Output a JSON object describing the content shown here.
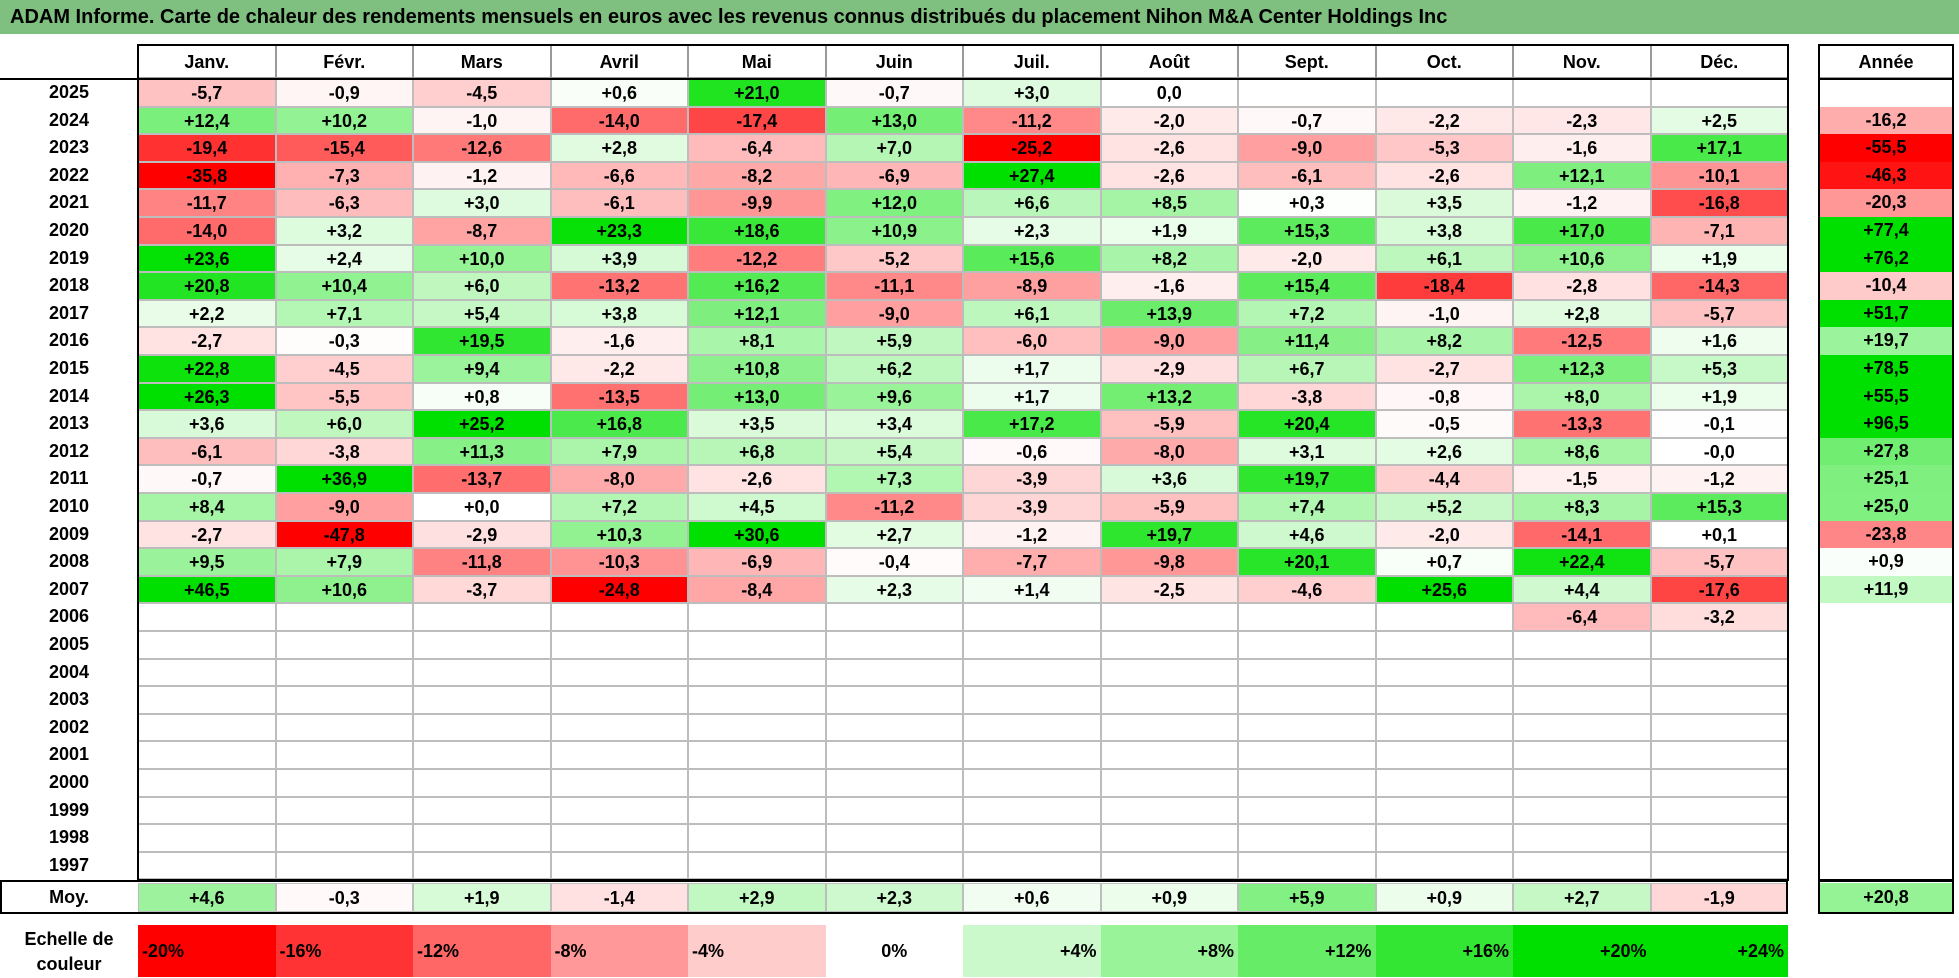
{
  "title": "ADAM Informe. Carte de chaleur des rendements mensuels en euros avec les revenus connus distribués du placement Nihon M&A Center Holdings Inc",
  "chart_data": {
    "type": "heatmap",
    "months": [
      "Janv.",
      "Févr.",
      "Mars",
      "Avril",
      "Mai",
      "Juin",
      "Juil.",
      "Août",
      "Sept.",
      "Oct.",
      "Nov.",
      "Déc."
    ],
    "year_header": "Année",
    "rows": [
      {
        "year": "2025",
        "values": [
          "-5,7",
          "-0,9",
          "-4,5",
          "+0,6",
          "+21,0",
          "-0,7",
          "+3,0",
          "0,0",
          "",
          "",
          "",
          ""
        ],
        "annual": ""
      },
      {
        "year": "2024",
        "values": [
          "+12,4",
          "+10,2",
          "-1,0",
          "-14,0",
          "-17,4",
          "+13,0",
          "-11,2",
          "-2,0",
          "-0,7",
          "-2,2",
          "-2,3",
          "+2,5"
        ],
        "annual": "-16,2"
      },
      {
        "year": "2023",
        "values": [
          "-19,4",
          "-15,4",
          "-12,6",
          "+2,8",
          "-6,4",
          "+7,0",
          "-25,2",
          "-2,6",
          "-9,0",
          "-5,3",
          "-1,6",
          "+17,1"
        ],
        "annual": "-55,5"
      },
      {
        "year": "2022",
        "values": [
          "-35,8",
          "-7,3",
          "-1,2",
          "-6,6",
          "-8,2",
          "-6,9",
          "+27,4",
          "-2,6",
          "-6,1",
          "-2,6",
          "+12,1",
          "-10,1"
        ],
        "annual": "-46,3"
      },
      {
        "year": "2021",
        "values": [
          "-11,7",
          "-6,3",
          "+3,0",
          "-6,1",
          "-9,9",
          "+12,0",
          "+6,6",
          "+8,5",
          "+0,3",
          "+3,5",
          "-1,2",
          "-16,8"
        ],
        "annual": "-20,3"
      },
      {
        "year": "2020",
        "values": [
          "-14,0",
          "+3,2",
          "-8,7",
          "+23,3",
          "+18,6",
          "+10,9",
          "+2,3",
          "+1,9",
          "+15,3",
          "+3,8",
          "+17,0",
          "-7,1"
        ],
        "annual": "+77,4"
      },
      {
        "year": "2019",
        "values": [
          "+23,6",
          "+2,4",
          "+10,0",
          "+3,9",
          "-12,2",
          "-5,2",
          "+15,6",
          "+8,2",
          "-2,0",
          "+6,1",
          "+10,6",
          "+1,9"
        ],
        "annual": "+76,2"
      },
      {
        "year": "2018",
        "values": [
          "+20,8",
          "+10,4",
          "+6,0",
          "-13,2",
          "+16,2",
          "-11,1",
          "-8,9",
          "-1,6",
          "+15,4",
          "-18,4",
          "-2,8",
          "-14,3"
        ],
        "annual": "-10,4"
      },
      {
        "year": "2017",
        "values": [
          "+2,2",
          "+7,1",
          "+5,4",
          "+3,8",
          "+12,1",
          "-9,0",
          "+6,1",
          "+13,9",
          "+7,2",
          "-1,0",
          "+2,8",
          "-5,7"
        ],
        "annual": "+51,7"
      },
      {
        "year": "2016",
        "values": [
          "-2,7",
          "-0,3",
          "+19,5",
          "-1,6",
          "+8,1",
          "+5,9",
          "-6,0",
          "-9,0",
          "+11,4",
          "+8,2",
          "-12,5",
          "+1,6"
        ],
        "annual": "+19,7"
      },
      {
        "year": "2015",
        "values": [
          "+22,8",
          "-4,5",
          "+9,4",
          "-2,2",
          "+10,8",
          "+6,2",
          "+1,7",
          "-2,9",
          "+6,7",
          "-2,7",
          "+12,3",
          "+5,3"
        ],
        "annual": "+78,5"
      },
      {
        "year": "2014",
        "values": [
          "+26,3",
          "-5,5",
          "+0,8",
          "-13,5",
          "+13,0",
          "+9,6",
          "+1,7",
          "+13,2",
          "-3,8",
          "-0,8",
          "+8,0",
          "+1,9"
        ],
        "annual": "+55,5"
      },
      {
        "year": "2013",
        "values": [
          "+3,6",
          "+6,0",
          "+25,2",
          "+16,8",
          "+3,5",
          "+3,4",
          "+17,2",
          "-5,9",
          "+20,4",
          "-0,5",
          "-13,3",
          "-0,1"
        ],
        "annual": "+96,5"
      },
      {
        "year": "2012",
        "values": [
          "-6,1",
          "-3,8",
          "+11,3",
          "+7,9",
          "+6,8",
          "+5,4",
          "-0,6",
          "-8,0",
          "+3,1",
          "+2,6",
          "+8,6",
          "-0,0"
        ],
        "annual": "+27,8"
      },
      {
        "year": "2011",
        "values": [
          "-0,7",
          "+36,9",
          "-13,7",
          "-8,0",
          "-2,6",
          "+7,3",
          "-3,9",
          "+3,6",
          "+19,7",
          "-4,4",
          "-1,5",
          "-1,2"
        ],
        "annual": "+25,1"
      },
      {
        "year": "2010",
        "values": [
          "+8,4",
          "-9,0",
          "+0,0",
          "+7,2",
          "+4,5",
          "-11,2",
          "-3,9",
          "-5,9",
          "+7,4",
          "+5,2",
          "+8,3",
          "+15,3"
        ],
        "annual": "+25,0"
      },
      {
        "year": "2009",
        "values": [
          "-2,7",
          "-47,8",
          "-2,9",
          "+10,3",
          "+30,6",
          "+2,7",
          "-1,2",
          "+19,7",
          "+4,6",
          "-2,0",
          "-14,1",
          "+0,1"
        ],
        "annual": "-23,8"
      },
      {
        "year": "2008",
        "values": [
          "+9,5",
          "+7,9",
          "-11,8",
          "-10,3",
          "-6,9",
          "-0,4",
          "-7,7",
          "-9,8",
          "+20,1",
          "+0,7",
          "+22,4",
          "-5,7"
        ],
        "annual": "+0,9"
      },
      {
        "year": "2007",
        "values": [
          "+46,5",
          "+10,6",
          "-3,7",
          "-24,8",
          "-8,4",
          "+2,3",
          "+1,4",
          "-2,5",
          "-4,6",
          "+25,6",
          "+4,4",
          "-17,6"
        ],
        "annual": "+11,9"
      },
      {
        "year": "2006",
        "values": [
          "",
          "",
          "",
          "",
          "",
          "",
          "",
          "",
          "",
          "",
          "-6,4",
          "-3,2"
        ],
        "annual": ""
      },
      {
        "year": "2005",
        "values": [
          "",
          "",
          "",
          "",
          "",
          "",
          "",
          "",
          "",
          "",
          "",
          ""
        ],
        "annual": ""
      },
      {
        "year": "2004",
        "values": [
          "",
          "",
          "",
          "",
          "",
          "",
          "",
          "",
          "",
          "",
          "",
          ""
        ],
        "annual": ""
      },
      {
        "year": "2003",
        "values": [
          "",
          "",
          "",
          "",
          "",
          "",
          "",
          "",
          "",
          "",
          "",
          ""
        ],
        "annual": ""
      },
      {
        "year": "2002",
        "values": [
          "",
          "",
          "",
          "",
          "",
          "",
          "",
          "",
          "",
          "",
          "",
          ""
        ],
        "annual": ""
      },
      {
        "year": "2001",
        "values": [
          "",
          "",
          "",
          "",
          "",
          "",
          "",
          "",
          "",
          "",
          "",
          ""
        ],
        "annual": ""
      },
      {
        "year": "2000",
        "values": [
          "",
          "",
          "",
          "",
          "",
          "",
          "",
          "",
          "",
          "",
          "",
          ""
        ],
        "annual": ""
      },
      {
        "year": "1999",
        "values": [
          "",
          "",
          "",
          "",
          "",
          "",
          "",
          "",
          "",
          "",
          "",
          ""
        ],
        "annual": ""
      },
      {
        "year": "1998",
        "values": [
          "",
          "",
          "",
          "",
          "",
          "",
          "",
          "",
          "",
          "",
          "",
          ""
        ],
        "annual": ""
      },
      {
        "year": "1997",
        "values": [
          "",
          "",
          "",
          "",
          "",
          "",
          "",
          "",
          "",
          "",
          "",
          ""
        ],
        "annual": ""
      }
    ],
    "average": {
      "label": "Moy.",
      "values": [
        "+4,6",
        "-0,3",
        "+1,9",
        "-1,4",
        "+2,9",
        "+2,3",
        "+0,6",
        "+0,9",
        "+5,9",
        "+0,9",
        "+2,7",
        "-1,9"
      ],
      "annual": "+20,8"
    },
    "color_scale": {
      "label": "Echelle de couleur",
      "stops": [
        "-20%",
        "-16%",
        "-12%",
        "-8%",
        "-4%",
        "0%",
        "+4%",
        "+8%",
        "+12%",
        "+16%",
        "+20%",
        "+24%"
      ]
    },
    "colors": {
      "negative": "#ff0000",
      "neutral": "#ffffff",
      "positive": "#00e000",
      "title_bar": "#7fbf7f"
    }
  }
}
